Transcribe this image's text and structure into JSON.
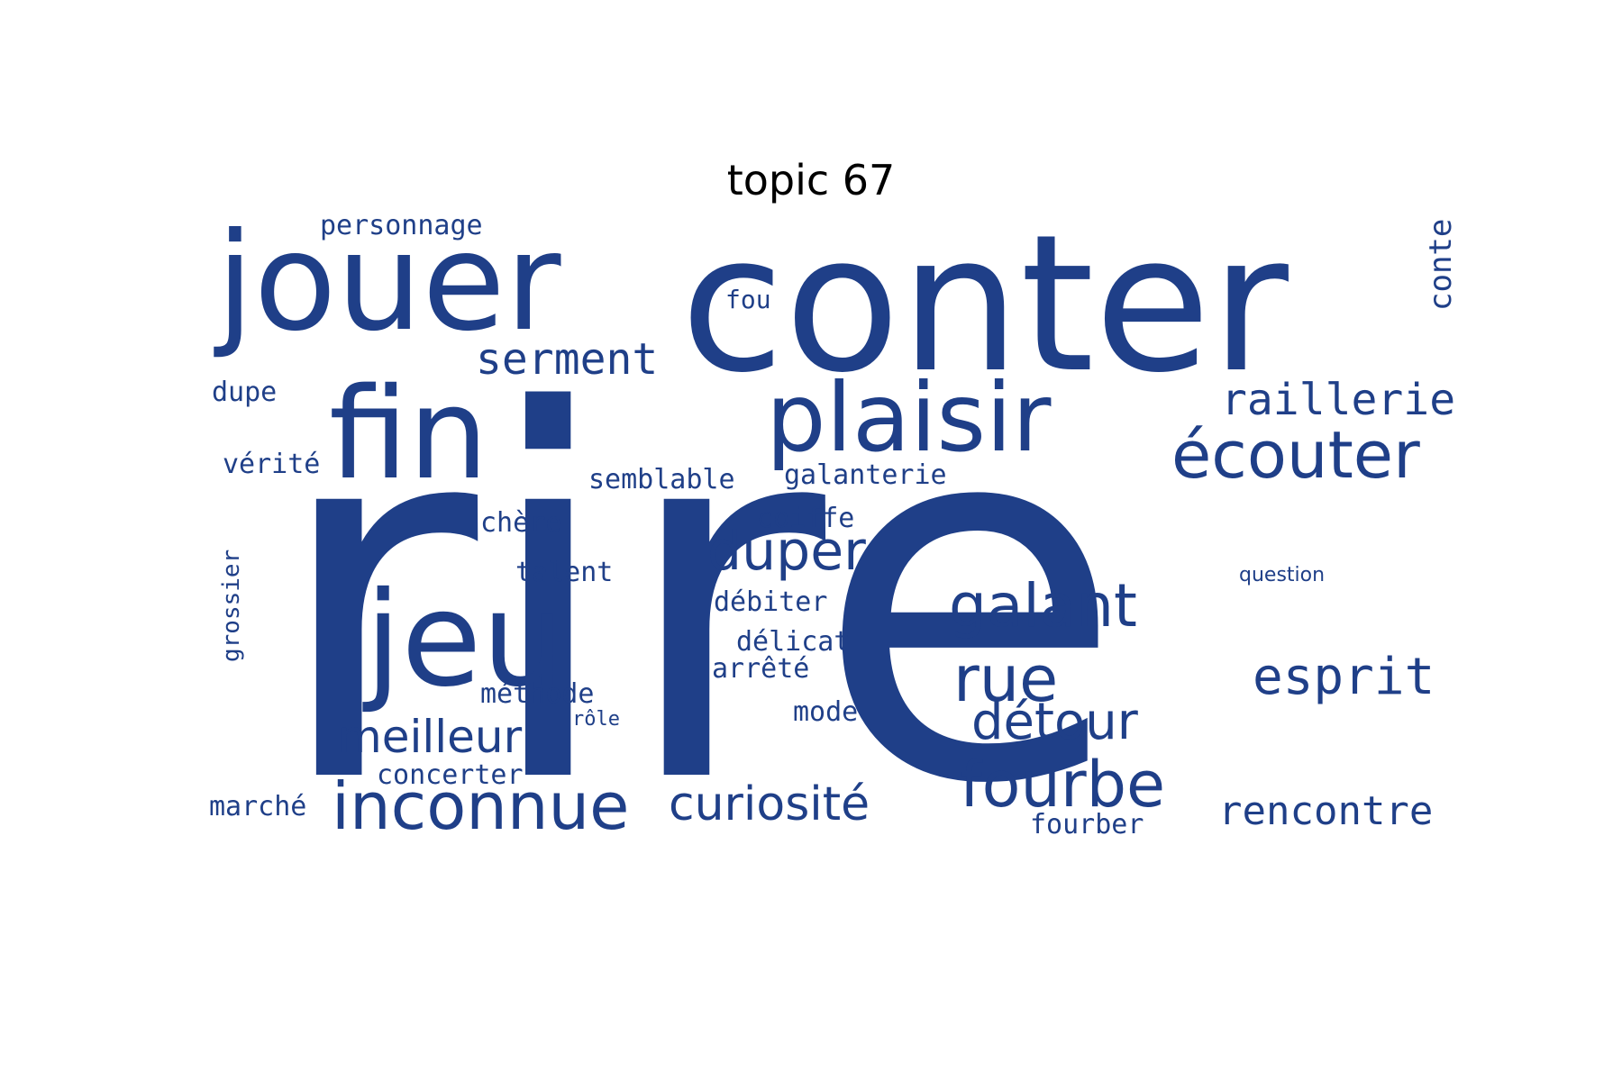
{
  "title": "topic 67",
  "color": "#1f3f88",
  "words": [
    "rire",
    "conter",
    "jouer",
    "fin",
    "jeu",
    "plaisir",
    "écouter",
    "raillerie",
    "serment",
    "personnage",
    "fou",
    "conte",
    "dupe",
    "vérité",
    "semblable",
    "galanterie",
    "chère",
    "coiffe",
    "duper",
    "talent",
    "débiter",
    "galant",
    "question",
    "délicat",
    "grossier",
    "arrêté",
    "rue",
    "esprit",
    "méthode",
    "rôle",
    "mode",
    "détour",
    "meilleur",
    "concerter",
    "fourbe",
    "marché",
    "inconnue",
    "curiosité",
    "rencontre",
    "fourber"
  ]
}
